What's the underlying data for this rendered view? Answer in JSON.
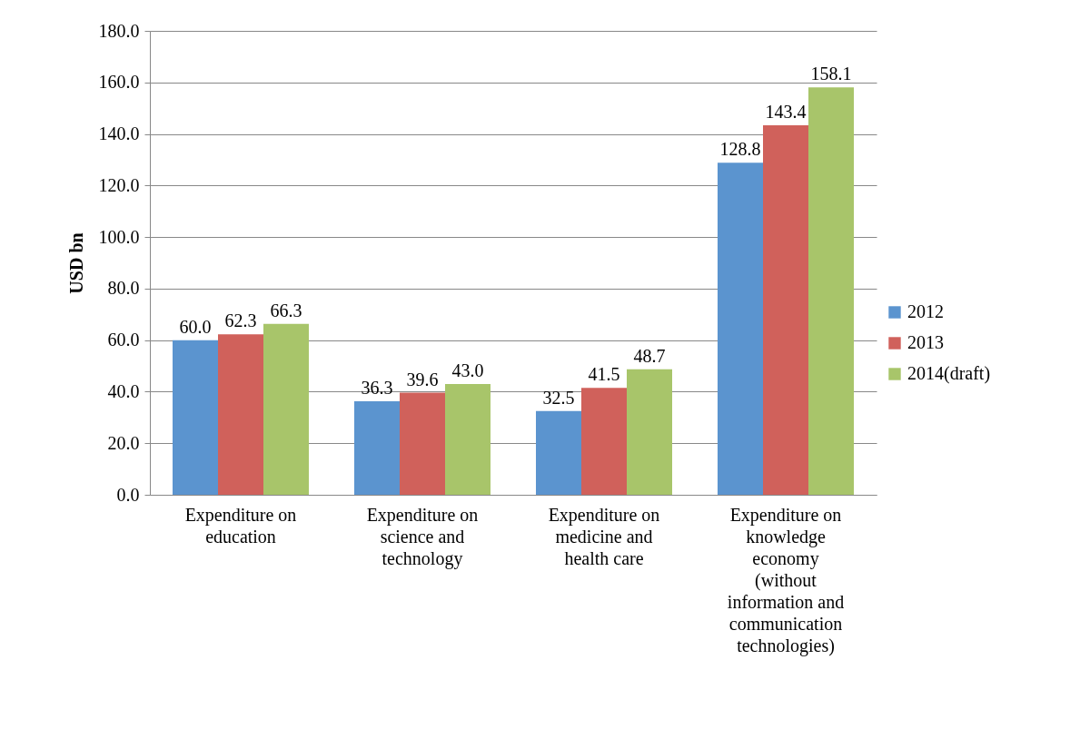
{
  "chart_data": {
    "type": "bar",
    "ylabel": "USD bn",
    "categories": [
      "Expenditure on education",
      "Expenditure on science and technology",
      "Expenditure on medicine and health care",
      "Expenditure on knowledge economy (without information and communication technologies)"
    ],
    "series": [
      {
        "name": "2012",
        "color": "#5b94cf",
        "values": [
          60.0,
          36.3,
          32.5,
          128.8
        ],
        "value_labels": [
          "60.0",
          "36.3",
          "32.5",
          "128.8"
        ]
      },
      {
        "name": "2013",
        "color": "#d0615b",
        "values": [
          62.3,
          39.6,
          41.5,
          143.4
        ],
        "value_labels": [
          "62.3",
          "39.6",
          "41.5",
          "143.4"
        ]
      },
      {
        "name": "2014(draft)",
        "color": "#a8c56a",
        "values": [
          66.3,
          43.0,
          48.7,
          158.1
        ],
        "value_labels": [
          "66.3",
          "43.0",
          "48.7",
          "158.1"
        ]
      }
    ],
    "ylim": [
      0,
      180
    ],
    "yticks": [
      {
        "value": 0,
        "label": "0.0"
      },
      {
        "value": 20,
        "label": "20.0"
      },
      {
        "value": 40,
        "label": "40.0"
      },
      {
        "value": 60,
        "label": "60.0"
      },
      {
        "value": 80,
        "label": "80.0"
      },
      {
        "value": 100,
        "label": "100.0"
      },
      {
        "value": 120,
        "label": "120.0"
      },
      {
        "value": 140,
        "label": "140.0"
      },
      {
        "value": 160,
        "label": "160.0"
      },
      {
        "value": 180,
        "label": "180.0"
      }
    ],
    "grid": "y",
    "legend": "right"
  }
}
